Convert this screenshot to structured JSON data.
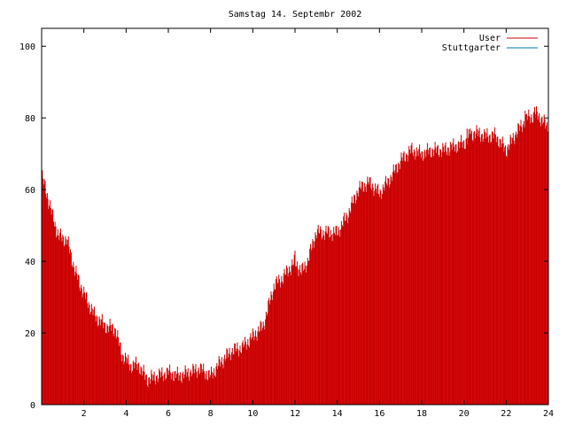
{
  "chart_data": {
    "type": "bar",
    "title": "Samstag 14. Septembr 2002",
    "xlabel": "",
    "ylabel": "",
    "xlim": [
      0,
      24
    ],
    "ylim": [
      0,
      105
    ],
    "xticks": [
      2,
      4,
      6,
      8,
      10,
      12,
      14,
      16,
      18,
      20,
      22,
      24
    ],
    "yticks": [
      0,
      20,
      40,
      60,
      80,
      100
    ],
    "grid": false,
    "legend_position": "top-right",
    "series": [
      {
        "name": "User",
        "color": "#cc0000",
        "anchors": [
          [
            0.0,
            64
          ],
          [
            0.2,
            60
          ],
          [
            0.5,
            53
          ],
          [
            0.8,
            47
          ],
          [
            1.2,
            46
          ],
          [
            1.6,
            37
          ],
          [
            2.0,
            31
          ],
          [
            2.5,
            25
          ],
          [
            3.0,
            22
          ],
          [
            3.5,
            21
          ],
          [
            3.8,
            14
          ],
          [
            4.2,
            11
          ],
          [
            4.6,
            11
          ],
          [
            5.0,
            7
          ],
          [
            5.5,
            8
          ],
          [
            6.0,
            9
          ],
          [
            6.5,
            8
          ],
          [
            7.0,
            9
          ],
          [
            7.5,
            10
          ],
          [
            8.0,
            8
          ],
          [
            8.5,
            12
          ],
          [
            9.0,
            15
          ],
          [
            9.5,
            16
          ],
          [
            10.0,
            19
          ],
          [
            10.5,
            22
          ],
          [
            11.0,
            33
          ],
          [
            11.5,
            36
          ],
          [
            12.0,
            40
          ],
          [
            12.3,
            37
          ],
          [
            12.6,
            40
          ],
          [
            13.0,
            48
          ],
          [
            13.5,
            48
          ],
          [
            14.0,
            48
          ],
          [
            14.5,
            53
          ],
          [
            15.0,
            60
          ],
          [
            15.5,
            62
          ],
          [
            16.0,
            59
          ],
          [
            16.5,
            63
          ],
          [
            17.0,
            68
          ],
          [
            17.5,
            71
          ],
          [
            18.0,
            70
          ],
          [
            18.5,
            71
          ],
          [
            19.0,
            71
          ],
          [
            19.5,
            72
          ],
          [
            20.0,
            73
          ],
          [
            20.5,
            76
          ],
          [
            21.0,
            75
          ],
          [
            21.5,
            75
          ],
          [
            22.0,
            71
          ],
          [
            22.5,
            76
          ],
          [
            23.0,
            80
          ],
          [
            23.5,
            81
          ],
          [
            24.0,
            77
          ]
        ],
        "spikes": [
          [
            12.0,
            43
          ],
          [
            20.15,
            77
          ],
          [
            20.3,
            77
          ],
          [
            22.9,
            82
          ],
          [
            23.35,
            83
          ]
        ]
      },
      {
        "name": "Stuttgarter",
        "color": "#0077aa",
        "values": [
          [
            0,
            0
          ],
          [
            24,
            0
          ]
        ]
      }
    ]
  }
}
